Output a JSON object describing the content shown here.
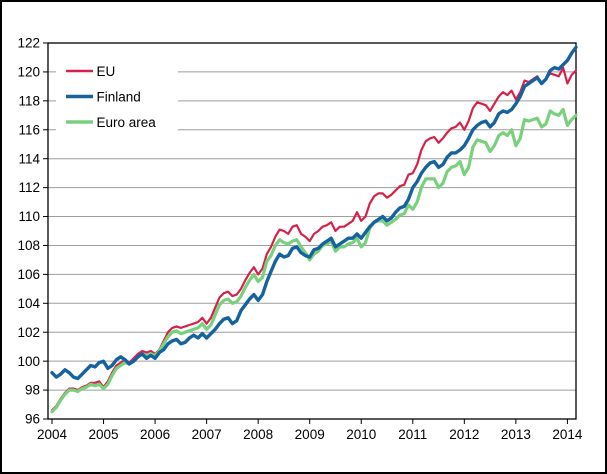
{
  "chart_data": {
    "type": "line",
    "x_frequency": "monthly",
    "x_start": "2004-01",
    "x_end": "2014-03",
    "xticks": [
      "2004",
      "2005",
      "2006",
      "2007",
      "2008",
      "2009",
      "2010",
      "2011",
      "2012",
      "2013",
      "2014"
    ],
    "ylim": [
      96,
      122
    ],
    "ytick_step": 2,
    "yticks": [
      "96",
      "98",
      "100",
      "102",
      "104",
      "106",
      "108",
      "110",
      "112",
      "114",
      "116",
      "118",
      "120",
      "122"
    ],
    "grid": "horizontal",
    "grid_color": "#9e9e9e",
    "axis_color": "#000000",
    "background_color": "#ffffff",
    "legend_position": "top-left",
    "draw_order": [
      0,
      2,
      1
    ],
    "series": [
      {
        "name": "EU",
        "color": "#d6224a",
        "width": 2.2,
        "values": [
          96.6,
          96.9,
          97.4,
          97.8,
          98.1,
          98.1,
          98.0,
          98.2,
          98.3,
          98.5,
          98.5,
          98.6,
          98.2,
          98.6,
          99.2,
          99.7,
          99.9,
          100.1,
          99.9,
          100.2,
          100.5,
          100.7,
          100.6,
          100.7,
          100.5,
          100.8,
          101.4,
          102.0,
          102.3,
          102.4,
          102.3,
          102.4,
          102.5,
          102.6,
          102.7,
          103.0,
          102.6,
          103.0,
          103.7,
          104.4,
          104.7,
          104.8,
          104.5,
          104.6,
          105.0,
          105.6,
          106.1,
          106.5,
          106.0,
          106.4,
          107.4,
          107.9,
          108.6,
          109.1,
          109.0,
          108.8,
          109.3,
          109.4,
          108.8,
          108.6,
          108.3,
          108.8,
          109.0,
          109.3,
          109.4,
          109.6,
          109.0,
          109.3,
          109.3,
          109.5,
          109.7,
          110.3,
          109.7,
          110.0,
          110.9,
          111.4,
          111.6,
          111.6,
          111.3,
          111.5,
          111.8,
          112.1,
          112.2,
          112.9,
          113.0,
          113.6,
          114.6,
          115.2,
          115.4,
          115.5,
          115.1,
          115.4,
          115.8,
          116.1,
          116.2,
          116.5,
          116.0,
          116.6,
          117.5,
          117.9,
          117.8,
          117.7,
          117.3,
          117.8,
          118.3,
          118.6,
          118.4,
          118.7,
          118.1,
          118.6,
          119.4,
          119.3,
          119.5,
          119.7,
          119.2,
          119.5,
          119.9,
          119.8,
          119.7,
          120.3,
          119.2,
          119.8,
          120.1
        ]
      },
      {
        "name": "Finland",
        "color": "#16629f",
        "width": 3.4,
        "values": [
          99.2,
          98.9,
          99.1,
          99.4,
          99.2,
          98.9,
          98.8,
          99.1,
          99.4,
          99.7,
          99.6,
          99.9,
          100.0,
          99.5,
          99.7,
          100.1,
          100.3,
          100.1,
          99.8,
          100.0,
          100.3,
          100.5,
          100.2,
          100.4,
          100.2,
          100.6,
          100.8,
          101.2,
          101.4,
          101.5,
          101.2,
          101.3,
          101.6,
          101.8,
          101.6,
          101.9,
          101.6,
          101.9,
          102.2,
          102.6,
          102.9,
          103.0,
          102.6,
          102.8,
          103.5,
          103.9,
          104.3,
          104.6,
          104.2,
          104.6,
          105.5,
          106.2,
          106.9,
          107.4,
          107.2,
          107.3,
          107.8,
          107.9,
          107.5,
          107.3,
          107.2,
          107.7,
          107.8,
          108.1,
          108.3,
          108.5,
          107.9,
          108.1,
          108.3,
          108.5,
          108.5,
          108.8,
          108.5,
          108.9,
          109.3,
          109.6,
          109.8,
          110.0,
          109.7,
          109.9,
          110.3,
          110.6,
          110.7,
          111.2,
          112.0,
          112.4,
          113.0,
          113.4,
          113.7,
          113.8,
          113.4,
          113.6,
          114.1,
          114.4,
          114.4,
          114.6,
          114.9,
          115.4,
          116.0,
          116.3,
          116.5,
          116.6,
          116.2,
          116.5,
          117.1,
          117.3,
          117.2,
          117.4,
          117.8,
          118.3,
          119.0,
          119.2,
          119.4,
          119.6,
          119.2,
          119.5,
          120.1,
          120.3,
          120.2,
          120.5,
          120.8,
          121.3,
          121.7
        ]
      },
      {
        "name": "Euro area",
        "color": "#79d07d",
        "width": 3.2,
        "values": [
          96.5,
          96.8,
          97.3,
          97.7,
          98.0,
          98.0,
          97.9,
          98.1,
          98.2,
          98.4,
          98.3,
          98.4,
          98.1,
          98.4,
          99.0,
          99.5,
          99.7,
          99.9,
          99.8,
          100.0,
          100.3,
          100.5,
          100.4,
          100.5,
          100.4,
          100.7,
          101.2,
          101.7,
          102.0,
          102.1,
          101.9,
          102.0,
          102.1,
          102.2,
          102.3,
          102.6,
          102.2,
          102.5,
          103.2,
          103.9,
          104.2,
          104.3,
          104.0,
          104.1,
          104.5,
          105.1,
          105.6,
          106.0,
          105.5,
          105.8,
          106.9,
          107.3,
          108.0,
          108.4,
          108.2,
          108.1,
          108.3,
          108.4,
          107.9,
          107.5,
          107.0,
          107.4,
          107.6,
          108.0,
          108.1,
          108.3,
          107.6,
          107.9,
          107.9,
          108.1,
          108.2,
          108.5,
          107.9,
          108.2,
          109.2,
          109.6,
          109.7,
          109.7,
          109.4,
          109.6,
          109.8,
          110.1,
          110.2,
          110.8,
          110.5,
          111.0,
          112.0,
          112.6,
          112.6,
          112.6,
          112.0,
          112.3,
          113.1,
          113.4,
          113.5,
          113.8,
          112.9,
          113.4,
          114.8,
          115.3,
          115.2,
          115.1,
          114.5,
          114.9,
          115.6,
          115.8,
          115.6,
          116.0,
          114.9,
          115.4,
          116.7,
          116.6,
          116.7,
          116.8,
          116.2,
          116.4,
          117.3,
          117.1,
          117.0,
          117.4,
          116.3,
          116.7,
          117.0
        ]
      }
    ],
    "legend": {
      "items": [
        "EU",
        "Finland",
        "Euro area"
      ]
    }
  }
}
